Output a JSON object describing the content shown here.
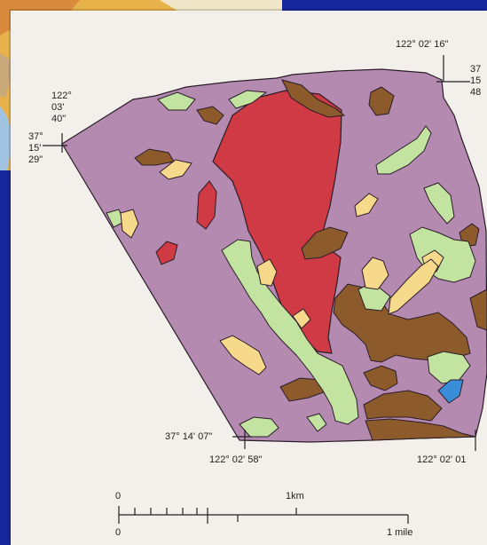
{
  "coordinates": {
    "top_right_lon": "122° 02' 16\"",
    "right_lat": [
      "37",
      "15",
      "48"
    ],
    "left_lon": [
      "122°",
      "03'",
      "40\""
    ],
    "left_lat": [
      "37°",
      "15'",
      "29\""
    ],
    "bottom_lat": "37° 14' 07\"",
    "bottom_left_lon": "122° 02' 58\"",
    "bottom_right_lon": "122° 02' 01"
  },
  "scale_bar": {
    "top_zero": "0",
    "km_label": "1km",
    "bottom_zero": "0",
    "mile_label": "1 mile"
  },
  "colors": {
    "background": "#16279b",
    "paper": "#f3f0eb",
    "base_unit": "#b58ab1",
    "red_unit": "#cf3a44",
    "brown_unit": "#8c5a2b",
    "green_unit": "#c3e3a0",
    "yellow_unit": "#f7d98b",
    "blue_unit": "#3a8ed9"
  }
}
